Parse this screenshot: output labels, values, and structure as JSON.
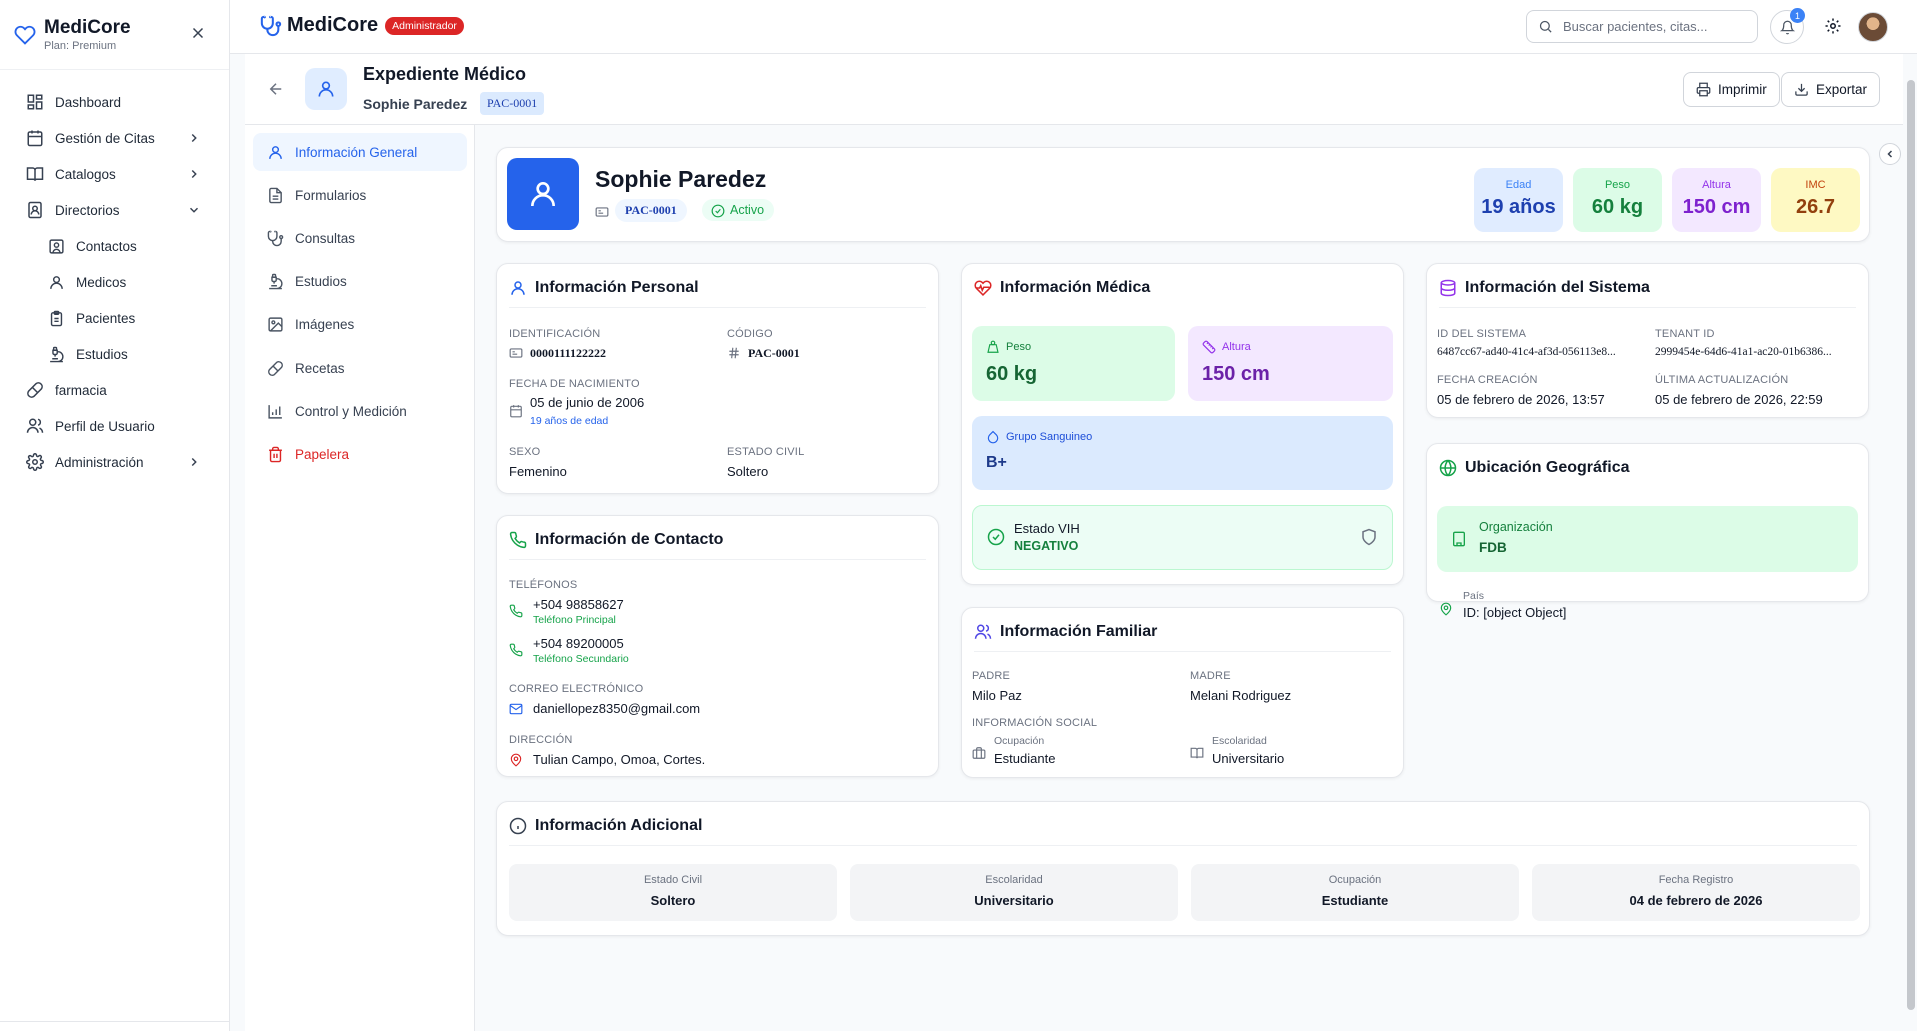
{
  "sidebar": {
    "brand": "MediCore",
    "plan": "Plan: Premium",
    "items": [
      {
        "label": "Dashboard",
        "icon": "dashboard-icon"
      },
      {
        "label": "Gestión de Citas",
        "icon": "calendar-icon"
      },
      {
        "label": "Catalogos",
        "icon": "book-icon"
      },
      {
        "label": "Directorios",
        "icon": "contacts-book-icon"
      },
      {
        "label": "Contactos",
        "icon": "contact-icon"
      },
      {
        "label": "Medicos",
        "icon": "user-icon"
      },
      {
        "label": "Pacientes",
        "icon": "clipboard-icon"
      },
      {
        "label": "Estudios",
        "icon": "microscope-icon"
      },
      {
        "label": "farmacia",
        "icon": "pill-icon"
      },
      {
        "label": "Perfil de Usuario",
        "icon": "users-icon"
      },
      {
        "label": "Administración",
        "icon": "gear-icon"
      }
    ]
  },
  "topbar": {
    "brand": "MediCore",
    "role_badge": "Administrador",
    "search_placeholder": "Buscar pacientes, citas...",
    "notification_count": "1"
  },
  "header": {
    "title": "Expediente Médico",
    "patient_name": "Sophie Paredez",
    "patient_code": "PAC-0001",
    "print_label": "Imprimir",
    "export_label": "Exportar"
  },
  "subnav": [
    {
      "label": "Información General",
      "icon": "user-icon"
    },
    {
      "label": "Formularios",
      "icon": "document-icon"
    },
    {
      "label": "Consultas",
      "icon": "stethoscope-icon"
    },
    {
      "label": "Estudios",
      "icon": "microscope-icon"
    },
    {
      "label": "Imágenes",
      "icon": "image-icon"
    },
    {
      "label": "Recetas",
      "icon": "pill-icon"
    },
    {
      "label": "Control y Medición",
      "icon": "bar-chart-icon"
    },
    {
      "label": "Papelera",
      "icon": "trash-icon"
    }
  ],
  "patient": {
    "name": "Sophie Paredez",
    "code": "PAC-0001",
    "status": "Activo",
    "stats": [
      {
        "label": "Edad",
        "value": "19 años",
        "color": "#1e40af"
      },
      {
        "label": "Peso",
        "value": "60 kg",
        "color": "#15803d"
      },
      {
        "label": "Altura",
        "value": "150 cm",
        "color": "#7e22ce"
      },
      {
        "label": "IMC",
        "value": "26.7",
        "color": "#c2410c"
      }
    ]
  },
  "personal": {
    "title": "Información Personal",
    "id_label": "Identificación",
    "id_value": "0000111122222",
    "code_label": "Código",
    "code_value": "PAC-0001",
    "dob_label": "Fecha de Nacimiento",
    "dob_value": "05 de junio de 2006",
    "age_note": "19 años de edad",
    "sex_label": "Sexo",
    "sex_value": "Femenino",
    "civil_label": "Estado Civil",
    "civil_value": "Soltero"
  },
  "contact": {
    "title": "Información de Contacto",
    "phones_label": "Teléfonos",
    "phone1": "+504 98858627",
    "phone1_type": "Teléfono Principal",
    "phone2": "+504 89200005",
    "phone2_type": "Teléfono Secundario",
    "email_label": "Correo Electrónico",
    "email": "daniellopez8350@gmail.com",
    "address_label": "Dirección",
    "address": "Tulian Campo, Omoa, Cortes."
  },
  "medical": {
    "title": "Información Médica",
    "weight_label": "Peso",
    "weight_value": "60 kg",
    "height_label": "Altura",
    "height_value": "150 cm",
    "blood_label": "Grupo Sanguineo",
    "blood_value": "B+",
    "hiv_label": "Estado VIH",
    "hiv_value": "NEGATIVO"
  },
  "family": {
    "title": "Información Familiar",
    "father_label": "Padre",
    "father_value": "Milo Paz",
    "mother_label": "Madre",
    "mother_value": "Melani Rodriguez",
    "social_label": "Información Social",
    "occupation_label": "Ocupación",
    "occupation_value": "Estudiante",
    "schooling_label": "Escolaridad",
    "schooling_value": "Universitario"
  },
  "system": {
    "title": "Información del Sistema",
    "sysid_label": "ID del Sistema",
    "sysid_value": "6487cc67-ad40-41c4-af3d-056113e8...",
    "tenant_label": "Tenant ID",
    "tenant_value": "2999454e-64d6-41a1-ac20-01b6386...",
    "created_label": "Fecha Creación",
    "created_value": "05 de febrero de 2026, 13:57",
    "updated_label": "Última Actualización",
    "updated_value": "05 de febrero de 2026, 22:59"
  },
  "geo": {
    "title": "Ubicación Geográfica",
    "org_label": "Organización",
    "org_value": "FDB",
    "country_label": "País",
    "country_value": "ID: [object Object]"
  },
  "additional": {
    "title": "Información Adicional",
    "items": [
      {
        "label": "Estado Civil",
        "value": "Soltero"
      },
      {
        "label": "Escolaridad",
        "value": "Universitario"
      },
      {
        "label": "Ocupación",
        "value": "Estudiante"
      },
      {
        "label": "Fecha Registro",
        "value": "04 de febrero de 2026"
      }
    ]
  }
}
